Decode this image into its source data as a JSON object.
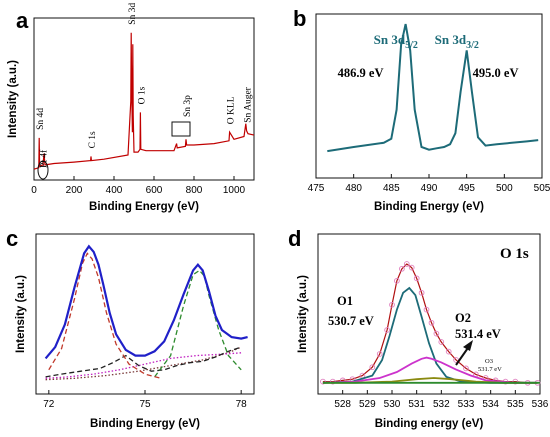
{
  "chart_data": [
    {
      "panel_letter": "a",
      "type": "line",
      "xlabel": "Binding Energy (eV)",
      "ylabel": "Intensity (a.u.)",
      "xlim": [
        0,
        1100
      ],
      "x_ticks": [
        0,
        200,
        400,
        600,
        800,
        1000
      ],
      "y_tick_labels": false,
      "line_color": "#c00000",
      "series": [
        {
          "x": [
            0,
            24,
            26,
            28,
            45,
            50,
            55,
            100,
            200,
            283,
            285,
            287,
            350,
            470,
            484,
            486,
            488,
            492,
            494,
            496,
            500,
            520,
            530,
            532,
            534,
            560,
            700,
            713,
            716,
            757,
            760,
            763,
            800,
            900,
            975,
            978,
            1000,
            1050,
            1059,
            1063,
            1070,
            1100
          ],
          "y": [
            0.02,
            0.03,
            0.24,
            0.04,
            0.05,
            0.13,
            0.05,
            0.06,
            0.07,
            0.08,
            0.11,
            0.08,
            0.09,
            0.12,
            0.5,
            0.98,
            0.62,
            0.28,
            0.9,
            0.4,
            0.14,
            0.14,
            0.16,
            0.42,
            0.16,
            0.15,
            0.15,
            0.2,
            0.17,
            0.18,
            0.23,
            0.19,
            0.19,
            0.2,
            0.22,
            0.28,
            0.23,
            0.25,
            0.34,
            0.29,
            0.27,
            0.26
          ]
        }
      ],
      "annotations": [
        {
          "text": "Sn 4d",
          "x": 26
        },
        {
          "text": "Pt 4f",
          "x": 72
        },
        {
          "text": "C 1s",
          "x": 285
        },
        {
          "text": "Sn 3d",
          "x": 486
        },
        {
          "text": "O 1s",
          "x": 532
        },
        {
          "text": "Sn 3p",
          "x": 760
        },
        {
          "text": "O KLL",
          "x": 978
        },
        {
          "text": "Sn Auger",
          "x": 1063
        }
      ]
    },
    {
      "panel_letter": "b",
      "type": "line",
      "xlabel": "Binding Energy (eV)",
      "ylabel": "",
      "xlim": [
        475,
        505
      ],
      "x_ticks": [
        475,
        480,
        485,
        490,
        495,
        500,
        505
      ],
      "y_tick_labels": false,
      "line_color": "#1d6b78",
      "peak_label_color": "#1d6b78",
      "series": [
        {
          "x": [
            476.5,
            480,
            484,
            485,
            485.7,
            486.3,
            486.9,
            487.5,
            488.1,
            489,
            490,
            491,
            492,
            492.8,
            493.5,
            494.2,
            495,
            495.7,
            496.5,
            497.5,
            499,
            501,
            503,
            504.5
          ],
          "y": [
            0.05,
            0.08,
            0.11,
            0.14,
            0.35,
            0.82,
            0.97,
            0.78,
            0.35,
            0.08,
            0.06,
            0.07,
            0.08,
            0.1,
            0.18,
            0.48,
            0.78,
            0.48,
            0.15,
            0.09,
            0.1,
            0.11,
            0.12,
            0.13
          ]
        }
      ],
      "peak_labels": [
        {
          "name": "Sn 3d",
          "subscript": "5/2",
          "value": "486.9 eV",
          "x": 486.9
        },
        {
          "name": "Sn 3d",
          "subscript": "3/2",
          "value": "495.0 eV",
          "x": 495.0
        }
      ]
    },
    {
      "panel_letter": "c",
      "type": "line",
      "xlabel": "Binding Energy (eV)",
      "ylabel": "Intensity (a.u.)",
      "xlim": [
        71.6,
        78.4
      ],
      "x_ticks": [
        72,
        75,
        78
      ],
      "y_tick_labels": false,
      "series": [
        {
          "style": "solid",
          "color": "#2020c8",
          "x": [
            71.9,
            72.2,
            72.5,
            72.8,
            73.1,
            73.25,
            73.4,
            73.55,
            73.7,
            73.9,
            74.1,
            74.4,
            74.7,
            75.0,
            75.3,
            75.6,
            75.9,
            76.2,
            76.5,
            76.65,
            76.8,
            77.0,
            77.2,
            77.4,
            77.7,
            78.0,
            78.2
          ],
          "y": [
            0.18,
            0.26,
            0.42,
            0.68,
            0.92,
            0.97,
            0.93,
            0.84,
            0.7,
            0.5,
            0.35,
            0.24,
            0.2,
            0.2,
            0.23,
            0.3,
            0.45,
            0.63,
            0.8,
            0.84,
            0.8,
            0.65,
            0.48,
            0.38,
            0.33,
            0.32,
            0.33
          ]
        },
        {
          "style": "dashed",
          "color": "#c0392b",
          "x": [
            72.0,
            72.4,
            72.8,
            73.05,
            73.2,
            73.35,
            73.55,
            73.8,
            74.1,
            74.5,
            75.0,
            75.5
          ],
          "y": [
            0.1,
            0.25,
            0.6,
            0.85,
            0.92,
            0.88,
            0.75,
            0.5,
            0.28,
            0.14,
            0.07,
            0.04
          ]
        },
        {
          "style": "dashed",
          "color": "#2e8b2e",
          "x": [
            75.3,
            75.8,
            76.2,
            76.5,
            76.7,
            76.85,
            77.0,
            77.3,
            77.6,
            78.0
          ],
          "y": [
            0.05,
            0.2,
            0.55,
            0.77,
            0.8,
            0.76,
            0.62,
            0.38,
            0.2,
            0.1
          ]
        },
        {
          "style": "dashed",
          "color": "#222222",
          "x": [
            71.9,
            72.4,
            73.0,
            73.6,
            74.0,
            74.4,
            74.8,
            75.2,
            75.6,
            76.0,
            76.4,
            76.8,
            77.2,
            77.6,
            78.0
          ],
          "y": [
            0.05,
            0.07,
            0.09,
            0.11,
            0.15,
            0.2,
            0.13,
            0.09,
            0.1,
            0.13,
            0.15,
            0.16,
            0.19,
            0.23,
            0.26
          ]
        },
        {
          "style": "dotted",
          "color": "#c020c0",
          "x": [
            71.9,
            72.6,
            73.4,
            74.2,
            75.0,
            75.8,
            76.6,
            77.4,
            78.0
          ],
          "y": [
            0.04,
            0.05,
            0.07,
            0.1,
            0.14,
            0.18,
            0.2,
            0.21,
            0.22
          ]
        },
        {
          "style": "dotted",
          "color": "#7a3b3b",
          "x": [
            71.9,
            72.8,
            73.8,
            74.8,
            75.8,
            76.8,
            77.6,
            78.0
          ],
          "y": [
            0.03,
            0.04,
            0.06,
            0.09,
            0.13,
            0.17,
            0.22,
            0.26
          ]
        }
      ]
    },
    {
      "panel_letter": "d",
      "type": "line",
      "title": "O 1s",
      "xlabel": "Binding energy (eV)",
      "ylabel": "Intensity (a.u.)",
      "xlim": [
        527,
        536
      ],
      "x_ticks": [
        528,
        529,
        530,
        531,
        532,
        533,
        534,
        535,
        536
      ],
      "y_tick_labels": false,
      "series": [
        {
          "style": "scatter",
          "color": "#b01010",
          "x": [
            527.2,
            527.6,
            528.0,
            528.4,
            528.8,
            529.2,
            529.5,
            529.8,
            530.0,
            530.2,
            530.4,
            530.6,
            530.8,
            531.0,
            531.2,
            531.4,
            531.6,
            531.8,
            532.0,
            532.3,
            532.6,
            533.0,
            533.4,
            533.8,
            534.2,
            534.6,
            535.0,
            535.5,
            535.9
          ],
          "y": [
            0.02,
            0.02,
            0.03,
            0.04,
            0.07,
            0.14,
            0.25,
            0.45,
            0.66,
            0.86,
            0.96,
            1.0,
            0.97,
            0.88,
            0.76,
            0.62,
            0.51,
            0.42,
            0.35,
            0.27,
            0.2,
            0.13,
            0.08,
            0.05,
            0.03,
            0.02,
            0.02,
            0.01,
            0.01
          ]
        },
        {
          "style": "solid",
          "color": "#1d6b78",
          "name": "O1",
          "x": [
            527.2,
            528.4,
            529.2,
            529.6,
            529.9,
            530.2,
            530.45,
            530.7,
            530.95,
            531.2,
            531.5,
            531.8,
            532.2,
            532.8,
            534,
            535.9
          ],
          "y": [
            0.01,
            0.02,
            0.07,
            0.2,
            0.4,
            0.62,
            0.76,
            0.8,
            0.74,
            0.56,
            0.34,
            0.17,
            0.06,
            0.02,
            0.01,
            0.01
          ]
        },
        {
          "style": "solid",
          "color": "#cc33cc",
          "name": "O2",
          "x": [
            527.2,
            528.5,
            529.5,
            530.2,
            530.8,
            531.2,
            531.4,
            531.6,
            532.0,
            532.6,
            533.2,
            533.8,
            535.0,
            535.9
          ],
          "y": [
            0.01,
            0.02,
            0.05,
            0.1,
            0.17,
            0.21,
            0.22,
            0.21,
            0.18,
            0.12,
            0.07,
            0.03,
            0.01,
            0.01
          ]
        },
        {
          "style": "solid",
          "color": "#8a8a10",
          "name": "O3",
          "x": [
            527.2,
            528.5,
            530.0,
            531.0,
            531.7,
            532.4,
            533.4,
            534.5,
            535.9
          ],
          "y": [
            0.01,
            0.01,
            0.02,
            0.04,
            0.05,
            0.04,
            0.02,
            0.01,
            0.01
          ]
        },
        {
          "style": "solid",
          "color": "#2e8b2e",
          "x": [
            527.2,
            536.0
          ],
          "y": [
            0.01,
            0.01
          ]
        }
      ],
      "peak_labels": [
        {
          "name": "O1",
          "value": "530.7 eV"
        },
        {
          "name": "O2",
          "value": "531.4 eV"
        },
        {
          "name": "O3",
          "value": "531.7 eV"
        }
      ]
    }
  ]
}
